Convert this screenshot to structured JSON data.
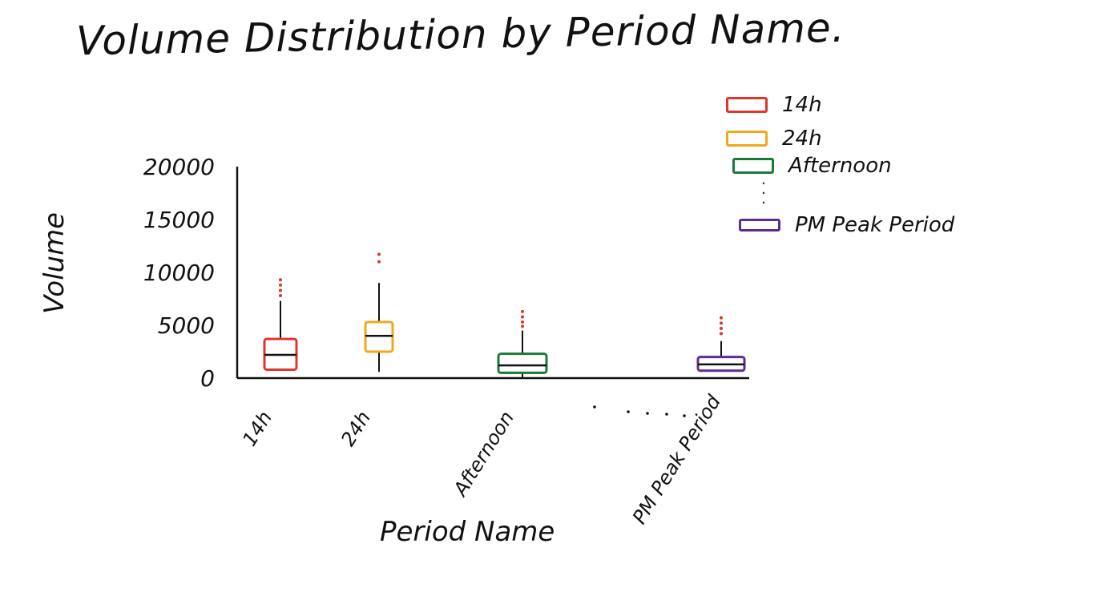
{
  "chart_data": {
    "type": "box",
    "title": "Volume Distribution by Period Name.",
    "xlabel": "Period Name",
    "ylabel": "Volume",
    "ylim": [
      0,
      20000
    ],
    "yticks": [
      0,
      5000,
      10000,
      15000,
      20000
    ],
    "ytick_labels": [
      "0",
      "5000",
      "10000",
      "15000",
      "20000"
    ],
    "categories": [
      "14h",
      "24h",
      "Afternoon",
      "PM Peak Period"
    ],
    "ellipsis_between": [
      "Afternoon",
      "PM Peak Period"
    ],
    "series": [
      {
        "category": "14h",
        "color": "#e0352b",
        "whisker_low": 800,
        "q1": 800,
        "median": 2200,
        "q3": 3700,
        "whisker_high": 7300,
        "outliers": [
          7800,
          8300,
          8800,
          9300
        ]
      },
      {
        "category": "24h",
        "color": "#f0a81e",
        "whisker_low": 600,
        "q1": 2500,
        "median": 4000,
        "q3": 5300,
        "whisker_high": 9000,
        "outliers": [
          11000,
          11700
        ]
      },
      {
        "category": "Afternoon",
        "color": "#1a7a3a",
        "whisker_low": 0,
        "q1": 500,
        "median": 1200,
        "q3": 2300,
        "whisker_high": 4500,
        "outliers": [
          4900,
          5300,
          5800,
          6300
        ]
      },
      {
        "category": "PM Peak Period",
        "color": "#5b2d91",
        "whisker_low": 700,
        "q1": 700,
        "median": 1300,
        "q3": 2000,
        "whisker_high": 3500,
        "outliers": [
          4200,
          4700,
          5200,
          5700
        ]
      }
    ]
  },
  "legend": {
    "items": [
      {
        "label": "14h",
        "color": "#e0352b"
      },
      {
        "label": "24h",
        "color": "#f0a81e"
      },
      {
        "label": "Afternoon",
        "color": "#1a7a3a"
      },
      {
        "label": "PM Peak Period",
        "color": "#5b2d91"
      }
    ],
    "ellipsis": "·\n·\n·"
  }
}
